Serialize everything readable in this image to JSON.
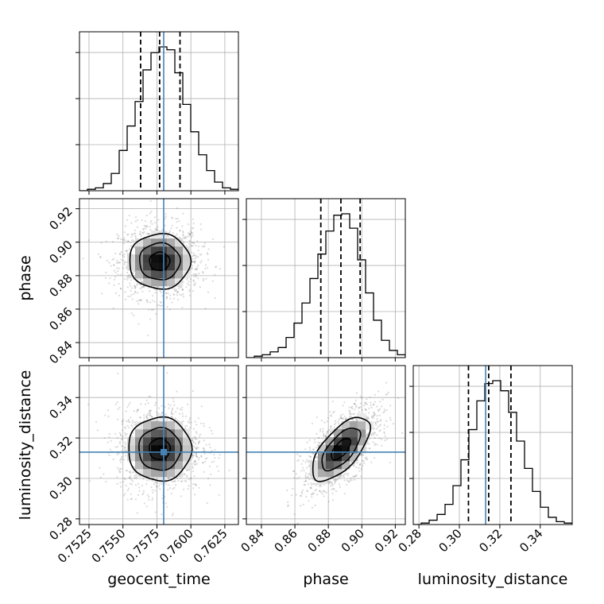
{
  "chart_data": {
    "type": "corner",
    "parameters": [
      "geocent_time",
      "phase",
      "luminosity_distance"
    ],
    "axis_labels": {
      "x": [
        "geocent_time",
        "phase",
        "luminosity_distance"
      ],
      "y": [
        "phase",
        "luminosity_distance"
      ]
    },
    "ranges": {
      "geocent_time": [
        0.7518,
        0.7635
      ],
      "phase": [
        0.831,
        0.926
      ],
      "luminosity_distance": [
        0.2772,
        0.3558
      ]
    },
    "ticks": {
      "geocent_time": {
        "values": [
          0.7525,
          0.755,
          0.7575,
          0.76,
          0.7625
        ],
        "labels": [
          "0.7525",
          "0.7550",
          "0.7575",
          "0.7600",
          "0.7625"
        ]
      },
      "phase": {
        "values": [
          0.84,
          0.86,
          0.88,
          0.9,
          0.92
        ],
        "labels": [
          "0.84",
          "0.86",
          "0.88",
          "0.90",
          "0.92"
        ]
      },
      "luminosity_distance": {
        "values": [
          0.28,
          0.3,
          0.32,
          0.34
        ],
        "labels": [
          "0.28",
          "0.30",
          "0.32",
          "0.34"
        ]
      }
    },
    "truths": {
      "geocent_time": 0.758,
      "phase": null,
      "luminosity_distance": 0.313
    },
    "quantiles": {
      "geocent_time": [
        0.7563,
        0.7577,
        0.7592
      ],
      "phase": [
        0.8755,
        0.8875,
        0.899
      ],
      "luminosity_distance": [
        0.3045,
        0.3145,
        0.3255
      ]
    },
    "histograms": {
      "geocent_time": [
        0.0,
        0.01,
        0.02,
        0.05,
        0.12,
        0.28,
        0.45,
        0.62,
        0.84,
        0.96,
        1.0,
        0.98,
        0.82,
        0.6,
        0.41,
        0.25,
        0.14,
        0.06,
        0.02,
        0.01
      ],
      "phase": [
        0.0,
        0.01,
        0.02,
        0.04,
        0.07,
        0.14,
        0.24,
        0.38,
        0.55,
        0.72,
        0.88,
        0.99,
        1.0,
        0.9,
        0.68,
        0.45,
        0.26,
        0.12,
        0.05,
        0.02
      ],
      "luminosity_distance": [
        0.0,
        0.01,
        0.03,
        0.07,
        0.14,
        0.27,
        0.45,
        0.66,
        0.86,
        0.98,
        1.0,
        0.93,
        0.78,
        0.58,
        0.39,
        0.23,
        0.12,
        0.05,
        0.02,
        0.01
      ]
    },
    "pairs": [
      {
        "x": "geocent_time",
        "y": "phase",
        "center": [
          0.7577,
          0.8885
        ],
        "spread": [
          0.0015,
          0.011
        ],
        "correlation": 0.0
      },
      {
        "x": "geocent_time",
        "y": "luminosity_distance",
        "center": [
          0.7577,
          0.3145
        ],
        "spread": [
          0.00155,
          0.0105
        ],
        "correlation": 0.0
      },
      {
        "x": "phase",
        "y": "luminosity_distance",
        "center": [
          0.8875,
          0.3145
        ],
        "spread": [
          0.0115,
          0.0105
        ],
        "correlation": 0.65
      }
    ],
    "contour_levels": [
      0.5,
      1.0,
      1.5
    ],
    "colors": {
      "truth": "#4682b4",
      "line": "#000000",
      "grid": "#b0b0b0",
      "points": "#6e6e6e"
    },
    "grid": true
  }
}
